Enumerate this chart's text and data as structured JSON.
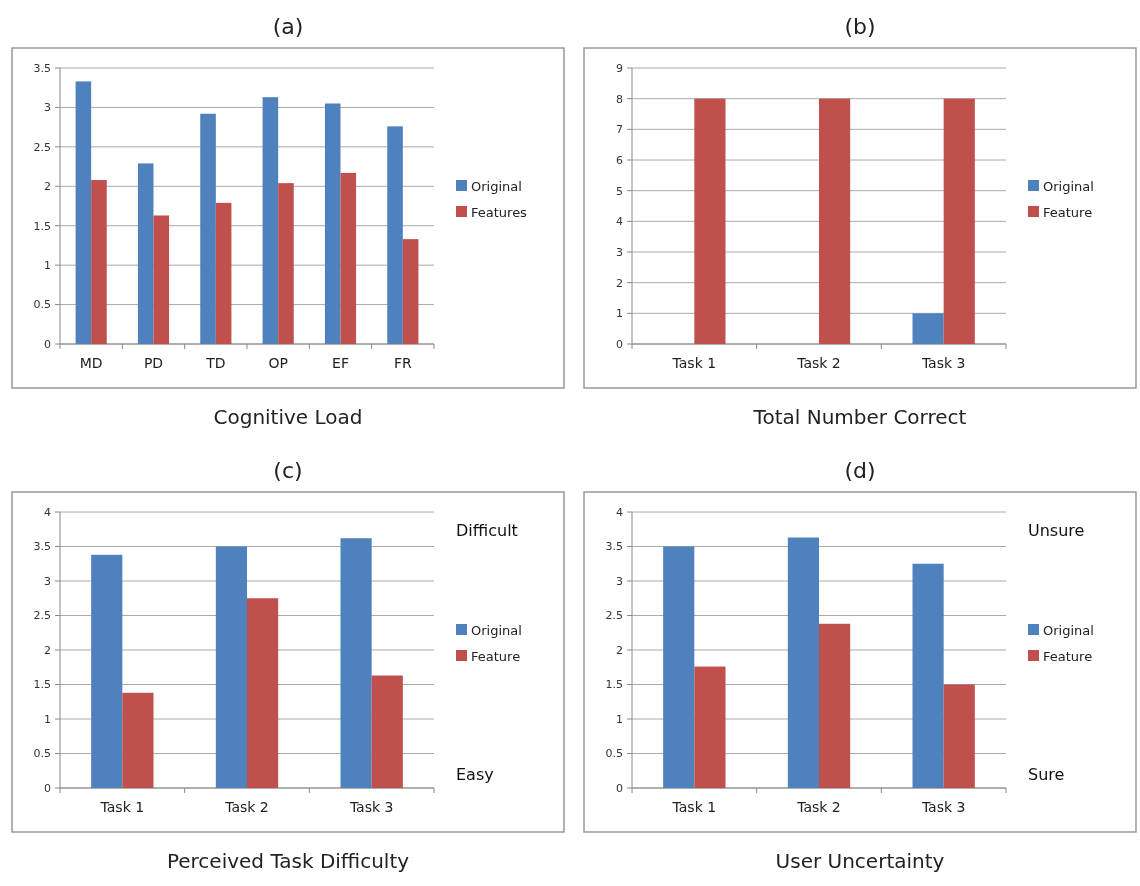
{
  "chart_data": [
    {
      "type": "bar",
      "title": "(a)",
      "xlabel": "Cognitive Load",
      "categories": [
        "MD",
        "PD",
        "TD",
        "OP",
        "EF",
        "FR"
      ],
      "series": [
        {
          "name": "Original",
          "color": "#4f81bd",
          "values": [
            3.33,
            2.29,
            2.92,
            3.13,
            3.05,
            2.76
          ]
        },
        {
          "name": "Features",
          "color": "#c0504d",
          "values": [
            2.08,
            1.63,
            1.79,
            2.04,
            2.17,
            1.33
          ]
        }
      ],
      "ylim": [
        0,
        3.5
      ],
      "yticks": [
        0,
        0.5,
        1,
        1.5,
        2,
        2.5,
        3,
        3.5
      ],
      "grid": "y",
      "legend": "right"
    },
    {
      "type": "bar",
      "title": "(b)",
      "xlabel": "Total Number Correct",
      "categories": [
        "Task 1",
        "Task 2",
        "Task 3"
      ],
      "series": [
        {
          "name": "Original",
          "color": "#4f81bd",
          "values": [
            0,
            0,
            1
          ]
        },
        {
          "name": "Feature",
          "color": "#c0504d",
          "values": [
            8,
            8,
            8
          ]
        }
      ],
      "ylim": [
        0,
        9
      ],
      "yticks": [
        0,
        1,
        2,
        3,
        4,
        5,
        6,
        7,
        8,
        9
      ],
      "grid": "y",
      "legend": "right"
    },
    {
      "type": "bar",
      "title": "(c)",
      "xlabel": "Perceived Task Difficulty",
      "categories": [
        "Task 1",
        "Task 2",
        "Task 3"
      ],
      "series": [
        {
          "name": "Original",
          "color": "#4f81bd",
          "values": [
            3.38,
            3.5,
            3.62
          ]
        },
        {
          "name": "Feature",
          "color": "#c0504d",
          "values": [
            1.38,
            2.75,
            1.63
          ]
        }
      ],
      "ylim": [
        0,
        4
      ],
      "yticks": [
        0,
        0.5,
        1,
        1.5,
        2,
        2.5,
        3,
        3.5,
        4
      ],
      "grid": "y",
      "legend": "right",
      "annotations": [
        "Difficult",
        "Easy"
      ]
    },
    {
      "type": "bar",
      "title": "(d)",
      "xlabel": "User Uncertainty",
      "categories": [
        "Task 1",
        "Task 2",
        "Task 3"
      ],
      "series": [
        {
          "name": "Original",
          "color": "#4f81bd",
          "values": [
            3.5,
            3.63,
            3.25
          ]
        },
        {
          "name": "Feature",
          "color": "#c0504d",
          "values": [
            1.76,
            2.38,
            1.5
          ]
        }
      ],
      "ylim": [
        0,
        4
      ],
      "yticks": [
        0,
        0.5,
        1,
        1.5,
        2,
        2.5,
        3,
        3.5,
        4
      ],
      "grid": "y",
      "legend": "right",
      "annotations": [
        "Unsure",
        "Sure"
      ]
    }
  ]
}
